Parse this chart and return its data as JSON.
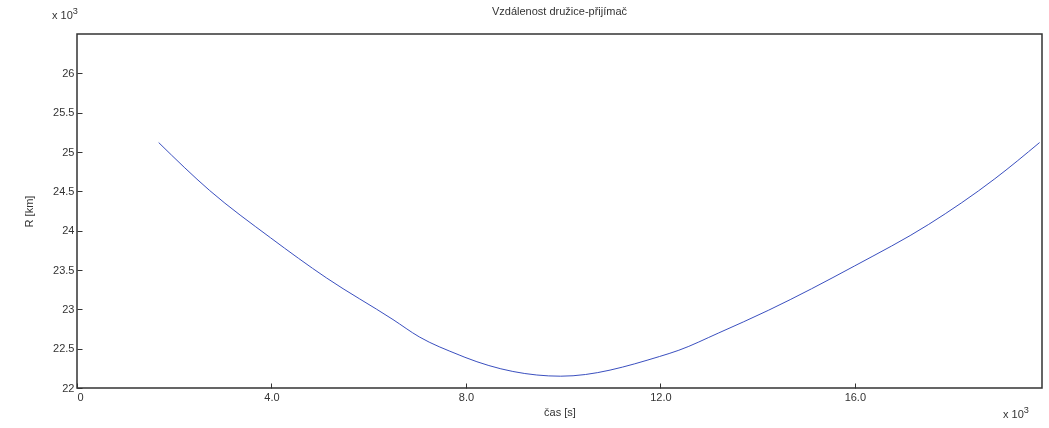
{
  "chart_data": {
    "type": "line",
    "title": "Vzdálenost družice-přijímač",
    "xlabel": "čas [s]",
    "ylabel": "R [km]",
    "annotations": [
      "x 10$^{3}$",
      "x 10$^{3}$"
    ],
    "x": [
      1.68,
      2.73,
      3.98,
      5.13,
      6.5,
      7.04,
      7.86,
      7.98,
      9.95,
      11.98,
      12.38,
      13.2,
      14.23,
      15.99,
      17.52,
      18.88,
      19.8
    ],
    "series": [
      {
        "color": "#3a4fbf",
        "values": [
          25.12,
          24.51,
          23.91,
          23.4,
          22.87,
          22.65,
          22.42,
          22.39,
          22.15,
          22.4,
          22.48,
          22.7,
          22.99,
          23.55,
          24.08,
          24.66,
          25.12
        ]
      }
    ],
    "xlim": [
      0,
      19.85
    ],
    "xticks": [
      0,
      {
        "value": 4,
        "label": "4.0"
      },
      {
        "value": 8,
        "label": "8.0"
      },
      {
        "value": 12,
        "label": "12.0"
      },
      {
        "value": 16,
        "label": "16.0"
      }
    ],
    "ylim": [
      22,
      26.5
    ],
    "yticks": [
      22,
      22.5,
      23,
      23.5,
      24,
      24.5,
      25,
      25.5,
      26
    ],
    "grid": false,
    "marker": "none",
    "line_style": "solid"
  }
}
